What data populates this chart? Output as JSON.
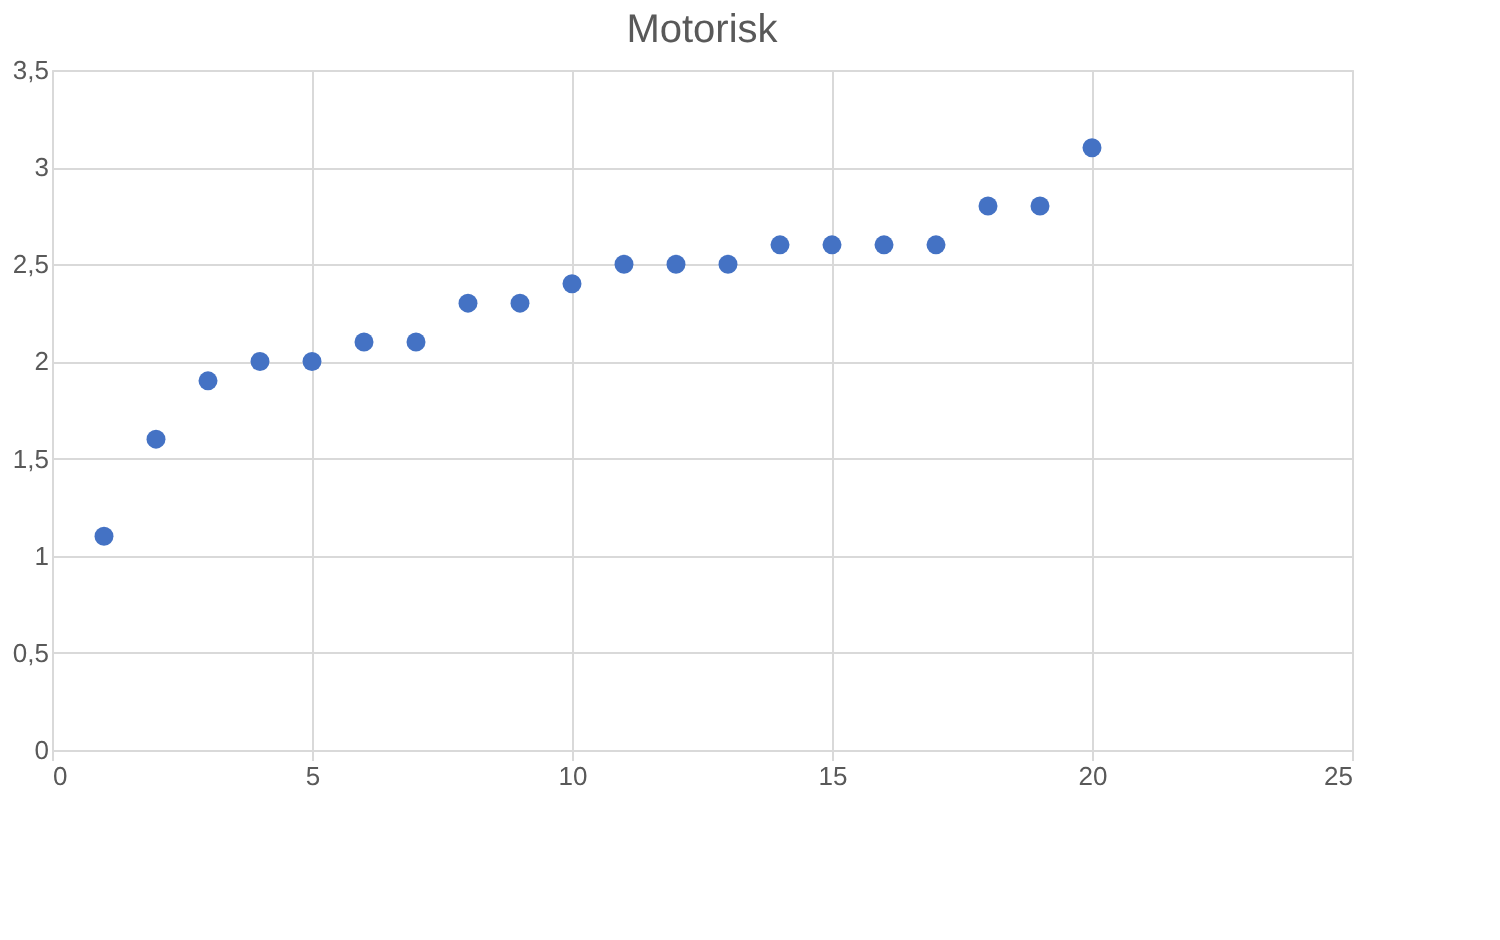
{
  "chart_data": {
    "type": "scatter",
    "title": "Motorisk",
    "x": [
      1,
      2,
      3,
      4,
      5,
      6,
      7,
      8,
      9,
      10,
      11,
      12,
      13,
      14,
      15,
      16,
      17,
      18,
      19,
      20
    ],
    "series": [
      {
        "color": "#4472c4",
        "values": [
          1.1,
          1.6,
          1.9,
          2.0,
          2.0,
          2.1,
          2.1,
          2.3,
          2.3,
          2.4,
          2.5,
          2.5,
          2.5,
          2.6,
          2.6,
          2.6,
          2.6,
          2.8,
          2.8,
          3.1
        ]
      }
    ],
    "xlim": [
      0,
      25
    ],
    "xticks": [
      0,
      5,
      10,
      15,
      20,
      25
    ],
    "ylim": [
      0,
      3.5
    ],
    "yticks": [
      0,
      {
        "value": 0.5,
        "label": "0,5"
      },
      1,
      {
        "value": 1.5,
        "label": "1,5"
      },
      2,
      {
        "value": 2.5,
        "label": "2,5"
      },
      3,
      {
        "value": 3.5,
        "label": "3,5"
      }
    ],
    "grid": true,
    "marker": "circle"
  }
}
